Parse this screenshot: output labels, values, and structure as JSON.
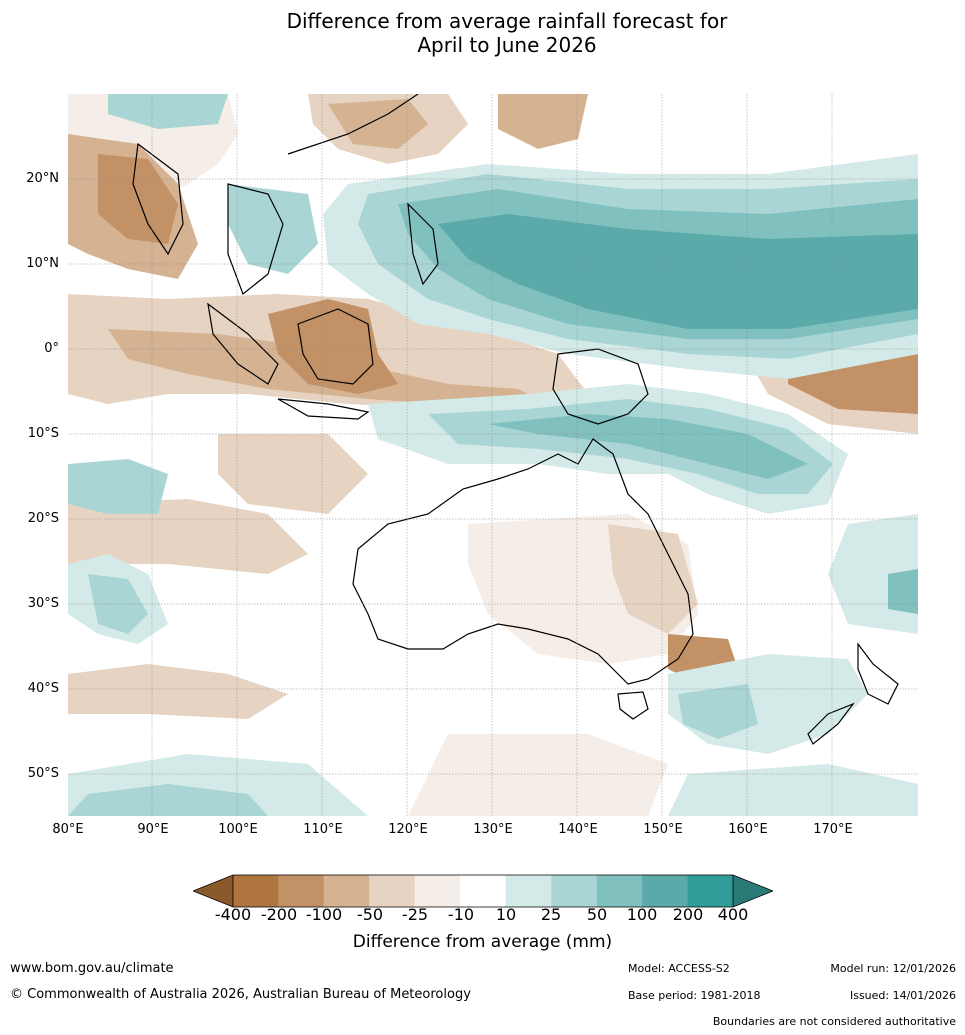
{
  "title": {
    "line1": "Difference from average rainfall forecast for",
    "line2": "April to June 2026"
  },
  "map": {
    "lat_labels": [
      "20°N",
      "10°N",
      "0°",
      "10°S",
      "20°S",
      "30°S",
      "40°S",
      "50°S"
    ],
    "lon_labels": [
      "80°E",
      "90°E",
      "100°E",
      "110°E",
      "120°E",
      "130°E",
      "140°E",
      "150°E",
      "160°E",
      "170°E"
    ],
    "lat_range": [
      -55,
      30
    ],
    "lon_range": [
      80,
      180
    ]
  },
  "legend": {
    "title": "Difference from average (mm)",
    "ticks": [
      "-400",
      "-200",
      "-100",
      "-50",
      "-25",
      "-10",
      "10",
      "25",
      "50",
      "100",
      "200",
      "400"
    ],
    "colors": {
      "below_400": "#8b5a2b",
      "c1": "#ae763e",
      "c2": "#c29166",
      "c3": "#d4b292",
      "c4": "#e6d3c1",
      "c5": "#f5ede7",
      "c6": "#ffffff",
      "c7": "#d4eae8",
      "c8": "#a9d6d4",
      "c9": "#80c0bf",
      "c10": "#59aaa8",
      "c11": "#329c98",
      "above_400": "#2a7a78"
    }
  },
  "footer": {
    "website": "www.bom.gov.au/climate",
    "copyright": "© Commonwealth of Australia 2026, Australian Bureau of Meteorology",
    "model": "Model: ACCESS-S2",
    "base_period": "Base period: 1981-2018",
    "model_run": "Model run: 12/01/2026",
    "issued": "Issued: 14/01/2026",
    "boundaries_note": "Boundaries are not considered authoritative"
  }
}
